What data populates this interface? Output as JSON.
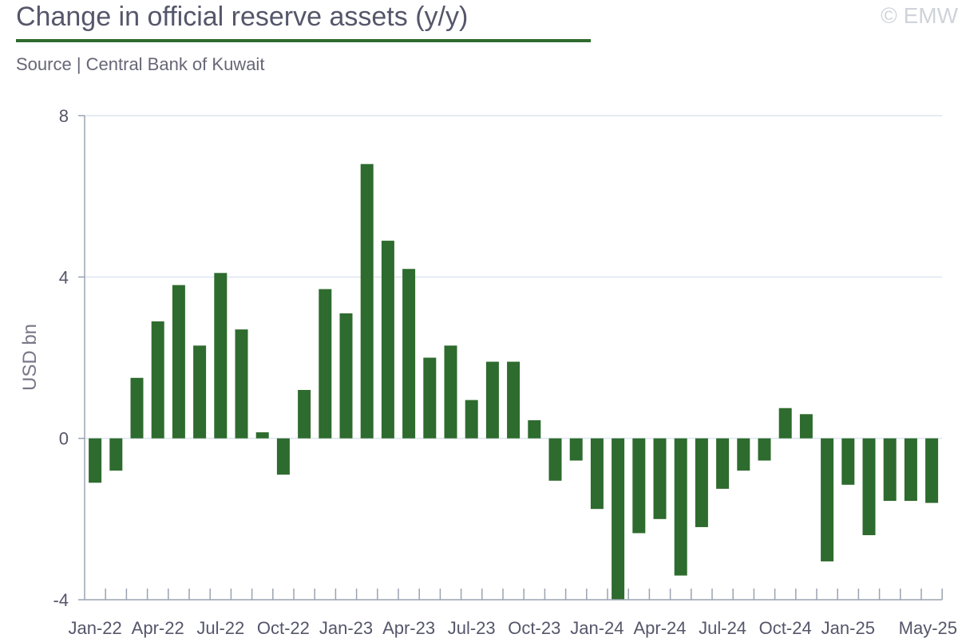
{
  "header": {
    "title": "Change in official reserve assets (y/y)",
    "subtitle": "Source | Central Bank of Kuwait",
    "watermark": "© EMW"
  },
  "colors": {
    "bar": "#2e6b2e",
    "grid": "#dde6ef",
    "axis": "#9aa3b0",
    "text": "#55566a"
  },
  "chart_data": {
    "type": "bar",
    "title": "Change in official reserve assets (y/y)",
    "xlabel": "",
    "ylabel": "USD bn",
    "ylim": [
      -4,
      8
    ],
    "yticks": [
      -4,
      0,
      4,
      8
    ],
    "grid": true,
    "legend": "none",
    "categories": [
      "Jan-22",
      "Feb-22",
      "Mar-22",
      "Apr-22",
      "May-22",
      "Jun-22",
      "Jul-22",
      "Aug-22",
      "Sep-22",
      "Oct-22",
      "Nov-22",
      "Dec-22",
      "Jan-23",
      "Feb-23",
      "Mar-23",
      "Apr-23",
      "May-23",
      "Jun-23",
      "Jul-23",
      "Aug-23",
      "Sep-23",
      "Oct-23",
      "Nov-23",
      "Dec-23",
      "Jan-24",
      "Feb-24",
      "Mar-24",
      "Apr-24",
      "May-24",
      "Jun-24",
      "Jul-24",
      "Aug-24",
      "Sep-24",
      "Oct-24",
      "Nov-24",
      "Dec-24",
      "Jan-25",
      "Feb-25",
      "Mar-25",
      "Apr-25",
      "May-25"
    ],
    "values": [
      -1.1,
      -0.8,
      1.5,
      2.9,
      3.8,
      2.3,
      4.1,
      2.7,
      0.15,
      -0.9,
      1.2,
      3.7,
      3.1,
      6.8,
      4.9,
      4.2,
      2.0,
      2.3,
      0.95,
      1.9,
      1.9,
      0.45,
      -1.05,
      -0.55,
      -1.75,
      -4.0,
      -2.35,
      -2.0,
      -3.4,
      -2.2,
      -1.25,
      -0.8,
      -0.55,
      0.75,
      0.6,
      -3.05,
      -1.15,
      -2.4,
      -1.55,
      -1.55,
      -1.6
    ],
    "tick_labels": [
      "Jan-22",
      "Apr-22",
      "Jul-22",
      "Oct-22",
      "Jan-23",
      "Apr-23",
      "Jul-23",
      "Oct-23",
      "Jan-24",
      "Apr-24",
      "Jul-24",
      "Oct-24",
      "Jan-25",
      "May-25"
    ]
  }
}
